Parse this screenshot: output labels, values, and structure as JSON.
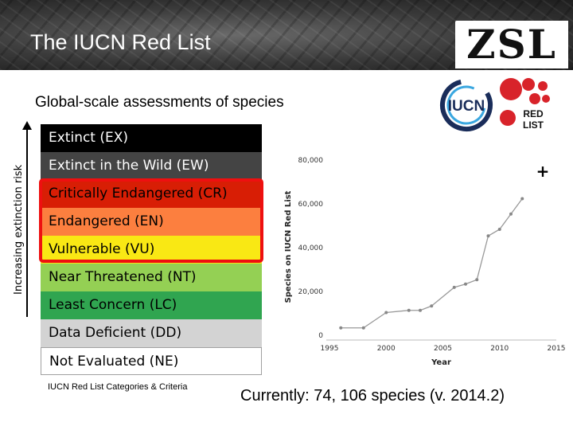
{
  "header": {
    "title": "The IUCN Red List",
    "org_logo_text": "ZSL"
  },
  "subtitle": "Global-scale assessments of species",
  "logos": {
    "iucn_text": "IUCN",
    "redlist_line1": "RED",
    "redlist_line2": "LIST"
  },
  "axis_label": "Increasing extinction risk",
  "categories": [
    {
      "label": "Extinct (EX)",
      "color": "#000000"
    },
    {
      "label": "Extinct in the Wild (EW)",
      "color": "#444444"
    },
    {
      "label": "Critically Endangered (CR)",
      "color": "#d81e05"
    },
    {
      "label": "Endangered (EN)",
      "color": "#fc7f3f"
    },
    {
      "label": "Vulnerable (VU)",
      "color": "#f9e814"
    },
    {
      "label": "Near Threatened (NT)",
      "color": "#94d054"
    },
    {
      "label": "Least Concern (LC)",
      "color": "#30a550"
    },
    {
      "label": "Data Deficient (DD)",
      "color": "#d3d3d3"
    },
    {
      "label": "Not Evaluated (NE)",
      "color": "#ffffff"
    }
  ],
  "criteria_caption": "IUCN Red List Categories & Criteria",
  "current_text": "Currently: 74, 106 species (v. 2014.2)",
  "plus_symbol": "+",
  "chart_data": {
    "type": "line",
    "xlabel": "Year",
    "ylabel": "Species on IUCN Red List",
    "xlim": [
      1995,
      2015
    ],
    "ylim": [
      0,
      80000
    ],
    "xticks": [
      "1995",
      "2000",
      "2005",
      "2010",
      "2015"
    ],
    "yticks": [
      "0",
      "20,000",
      "40,000",
      "60,000",
      "80,000"
    ],
    "x": [
      1996,
      1998,
      2000,
      2002,
      2003,
      2004,
      2006,
      2007,
      2008,
      2009,
      2010,
      2011,
      2012
    ],
    "values": [
      3000,
      3000,
      10000,
      11000,
      11000,
      13000,
      21500,
      23000,
      25000,
      45000,
      48000,
      55000,
      62000
    ]
  }
}
